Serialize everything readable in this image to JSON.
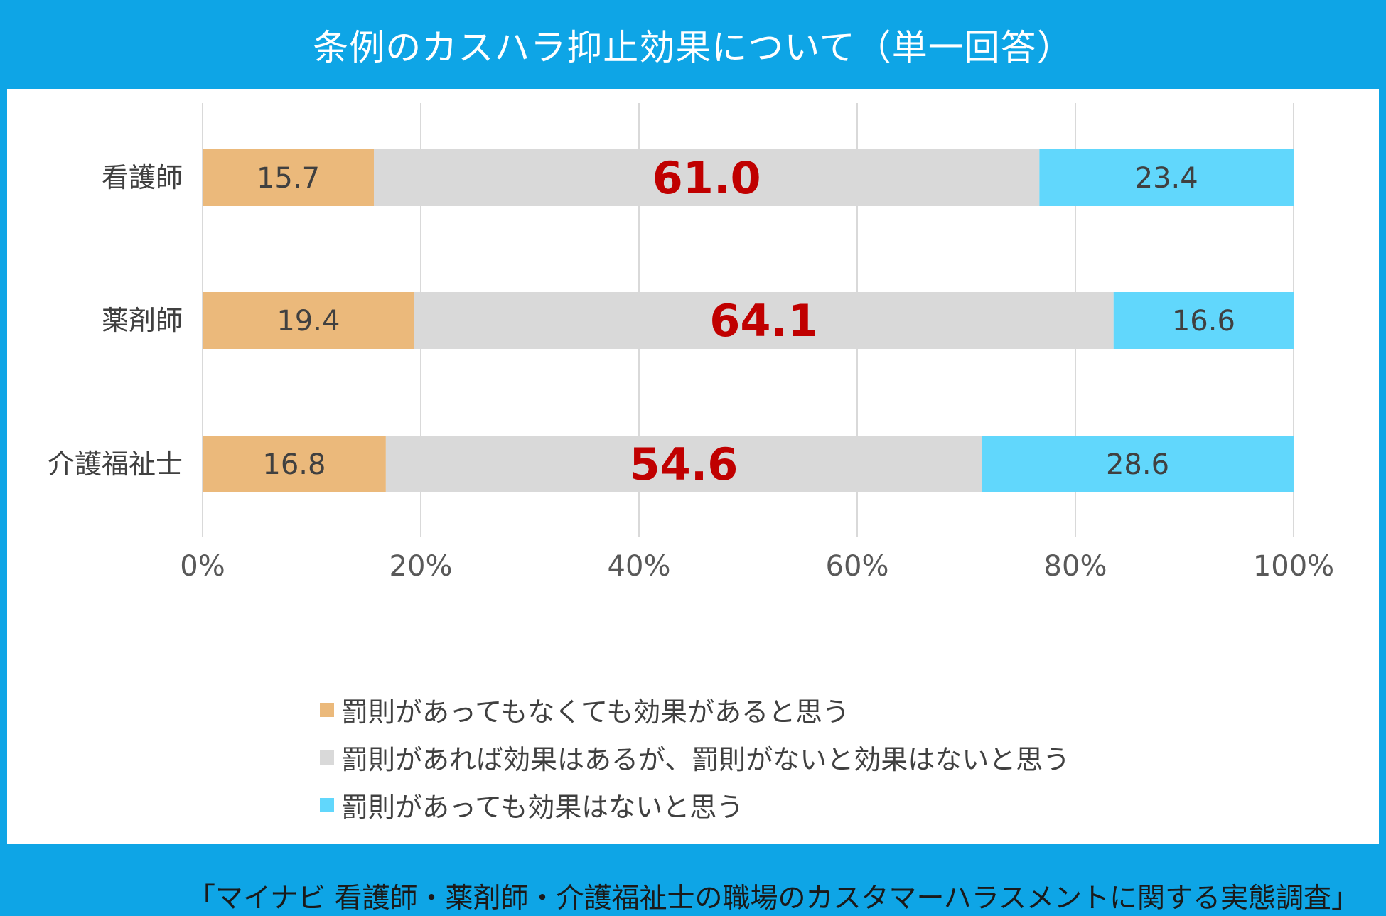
{
  "title": "条例のカスハラ抑止効果について（単一回答）",
  "chart_data": {
    "type": "bar",
    "orientation": "horizontal",
    "stacked": true,
    "categories": [
      "看護師",
      "薬剤師",
      "介護福祉士"
    ],
    "series": [
      {
        "name": "罰則があってもなくても効果があると思う",
        "values": [
          15.7,
          19.4,
          16.8
        ],
        "color": "#ebb97b",
        "label_color": "#404040"
      },
      {
        "name": "罰則があれば効果はあるが、罰則がないと効果はないと思う",
        "values": [
          61.0,
          64.1,
          54.6
        ],
        "color": "#d9d9d9",
        "label_color": "#c00000"
      },
      {
        "name": "罰則があっても効果はないと思う",
        "values": [
          23.4,
          16.6,
          28.6
        ],
        "color": "#61d7fc",
        "label_color": "#404040"
      }
    ],
    "xlim": [
      0,
      100
    ],
    "x_ticks": [
      "0%",
      "20%",
      "40%",
      "60%",
      "80%",
      "100%"
    ],
    "grid": true,
    "legend_position": "bottom"
  },
  "source": "「マイナビ 看護師・薬剤師・介護福祉士の職場のカスタマーハラスメントに関する実態調査」"
}
